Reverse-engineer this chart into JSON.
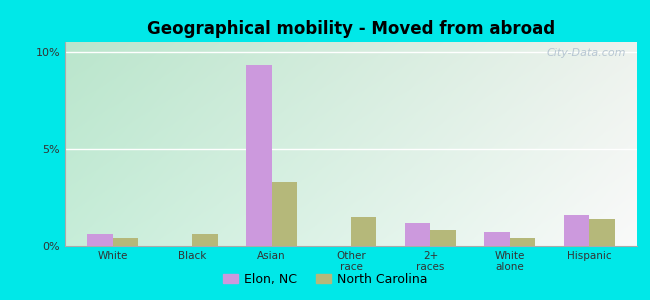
{
  "title": "Geographical mobility - Moved from abroad",
  "categories": [
    "White",
    "Black",
    "Asian",
    "Other\nrace",
    "2+\nraces",
    "White\nalone",
    "Hispanic"
  ],
  "elon_values": [
    0.6,
    0.0,
    9.3,
    0.0,
    1.2,
    0.7,
    1.6
  ],
  "nc_values": [
    0.4,
    0.6,
    3.3,
    1.5,
    0.8,
    0.4,
    1.4
  ],
  "elon_color": "#cc99dd",
  "nc_color": "#b5b87a",
  "bg_outer": "#00e8e8",
  "bg_plot_tl": "#c8ecd8",
  "bg_plot_tr": "#e8f8f0",
  "bg_plot_bl": "#c8ecd0",
  "bg_plot_br": "#d8f0e0",
  "ylim": [
    0,
    10.5
  ],
  "yticks": [
    0,
    5,
    10
  ],
  "ytick_labels": [
    "0%",
    "5%",
    "10%"
  ],
  "bar_width": 0.32,
  "watermark": "City-Data.com",
  "legend_labels": [
    "Elon, NC",
    "North Carolina"
  ]
}
